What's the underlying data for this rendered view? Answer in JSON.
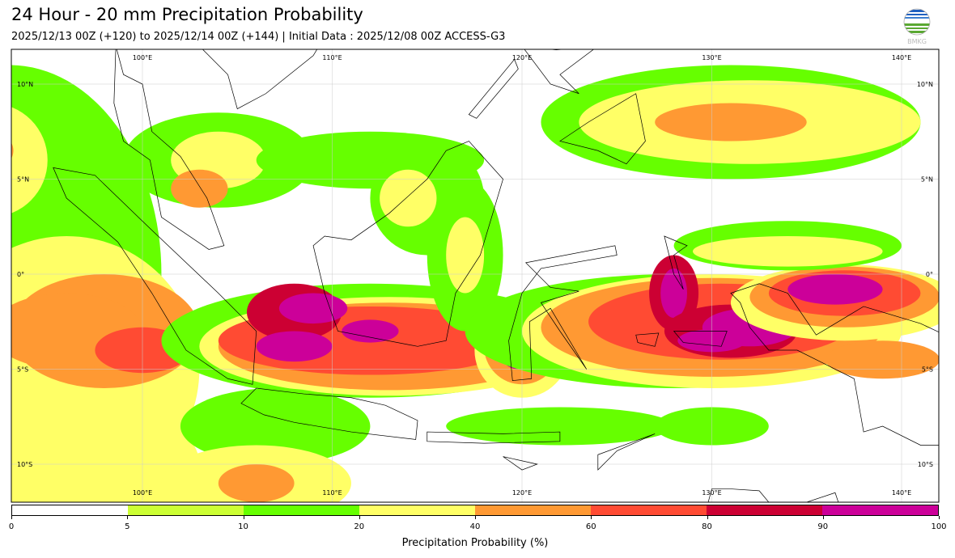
{
  "title": "24 Hour - 20 mm Precipitation Probability",
  "subtitle": "2025/12/13 00Z (+120) to 2025/12/14 00Z (+144) | Initial Data : 2025/12/08 00Z ACCESS-G3",
  "logo_text": "BMKG",
  "map": {
    "lon_labels": [
      "100°E",
      "110°E",
      "120°E",
      "130°E",
      "140°E"
    ],
    "lon_values": [
      100,
      110,
      120,
      130,
      140
    ],
    "lat_labels": [
      "10°N",
      "5°N",
      "0°",
      "5°S",
      "10°S"
    ],
    "lat_values": [
      10,
      5,
      0,
      -5,
      -10
    ]
  },
  "colorbar": {
    "label": "Precipitation Probability (%)",
    "ticks": [
      "0",
      "5",
      "10",
      "20",
      "40",
      "60",
      "80",
      "90",
      "100"
    ],
    "colors": [
      "#ffffff",
      "#ccff33",
      "#66ff00",
      "#ffff66",
      "#ff9933",
      "#ff4b33",
      "#cc0033",
      "#cc0099"
    ]
  }
}
